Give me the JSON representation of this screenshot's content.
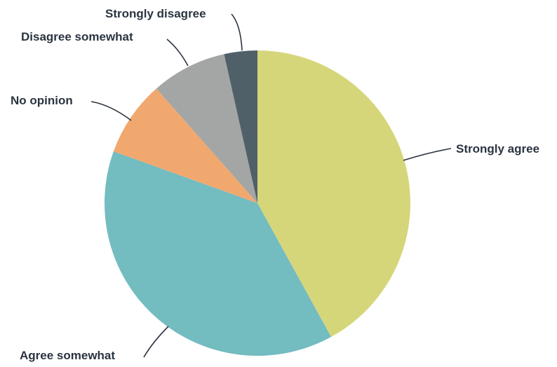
{
  "chart_data": {
    "type": "pie",
    "title": "",
    "slices": [
      {
        "label": "Strongly agree",
        "value": 42.0,
        "color": "#d5d67a"
      },
      {
        "label": "Agree somewhat",
        "value": 38.5,
        "color": "#73bcc0"
      },
      {
        "label": "No opinion",
        "value": 8.0,
        "color": "#f1a86e"
      },
      {
        "label": "Disagree somewhat",
        "value": 8.0,
        "color": "#a3a6a4"
      },
      {
        "label": "Strongly disagree",
        "value": 3.5,
        "color": "#4f6068"
      }
    ],
    "start_angle": "12 o'clock",
    "direction": "clockwise",
    "labels": "outside-with-leader-lines",
    "legend": "none"
  }
}
